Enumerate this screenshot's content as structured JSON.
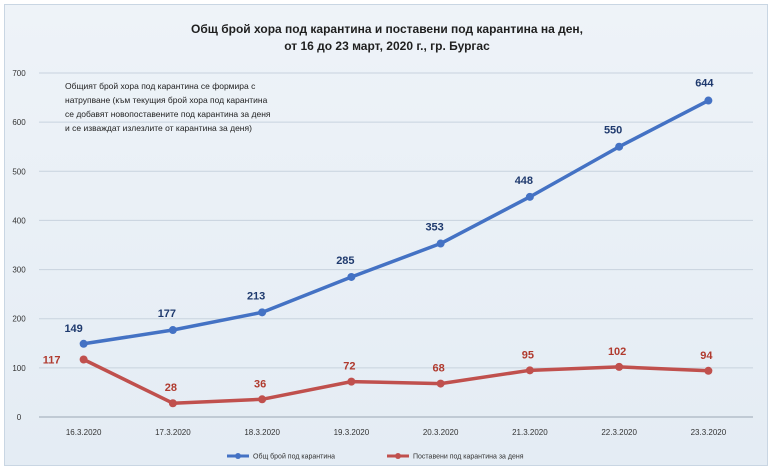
{
  "chart_data": {
    "type": "line",
    "title": [
      "Общ брой хора под карантина  и поставени под карантина  на ден,",
      "от 16 до 23 март, 2020 г., гр. Бургас"
    ],
    "annotation": [
      "Общият брой хора под карантина се формира с",
      "натрупване (към текущия брой хора под карантина",
      "се добавят новопоставените под карантина за деня",
      "и се изваждат излезлите от карантина за деня)"
    ],
    "categories": [
      "16.3.2020",
      "17.3.2020",
      "18.3.2020",
      "19.3.2020",
      "20.3.2020",
      "21.3.2020",
      "22.3.2020",
      "23.3.2020"
    ],
    "ylim": [
      0,
      700
    ],
    "yticks": [
      0,
      100,
      200,
      300,
      400,
      500,
      600,
      700
    ],
    "grid": true,
    "legend_position": "bottom",
    "series": [
      {
        "name": "Общ брой под карантина",
        "color": "#4472c4",
        "label_color": "#1f3a6e",
        "values": [
          149,
          177,
          213,
          285,
          353,
          448,
          550,
          644
        ]
      },
      {
        "name": "Поставени под карантина за деня",
        "color": "#c0504d",
        "label_color": "#b03a2e",
        "values": [
          117,
          28,
          36,
          72,
          68,
          95,
          102,
          94
        ]
      }
    ]
  }
}
